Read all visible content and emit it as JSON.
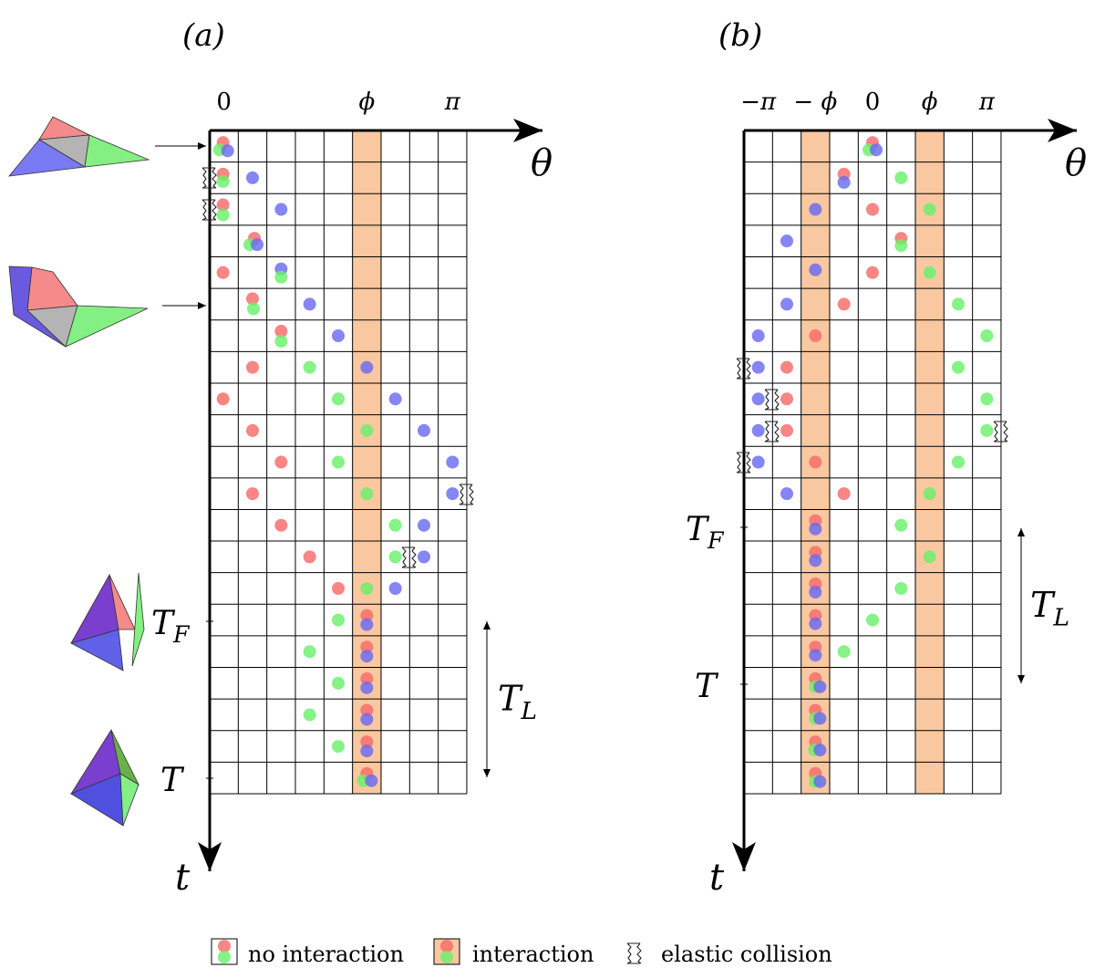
{
  "panels": [
    {
      "label": "(a)",
      "theta_ticks": [
        "0",
        "ϕ",
        "π"
      ],
      "theta_axis": "θ",
      "t_axis": "t",
      "t_f": {
        "base": "T",
        "sub": "F"
      },
      "t_end": "T",
      "t_l": {
        "base": "T",
        "sub": "L"
      }
    },
    {
      "label": "(b)",
      "theta_ticks": [
        "−π",
        "− ϕ",
        "0",
        "ϕ",
        "π"
      ],
      "theta_axis": "θ",
      "t_axis": "t",
      "t_f": {
        "base": "T",
        "sub": "F"
      },
      "t_end": "T",
      "t_l": {
        "base": "T",
        "sub": "L"
      }
    }
  ],
  "legend": [
    "no interaction",
    "interaction",
    "elastic collision"
  ]
}
